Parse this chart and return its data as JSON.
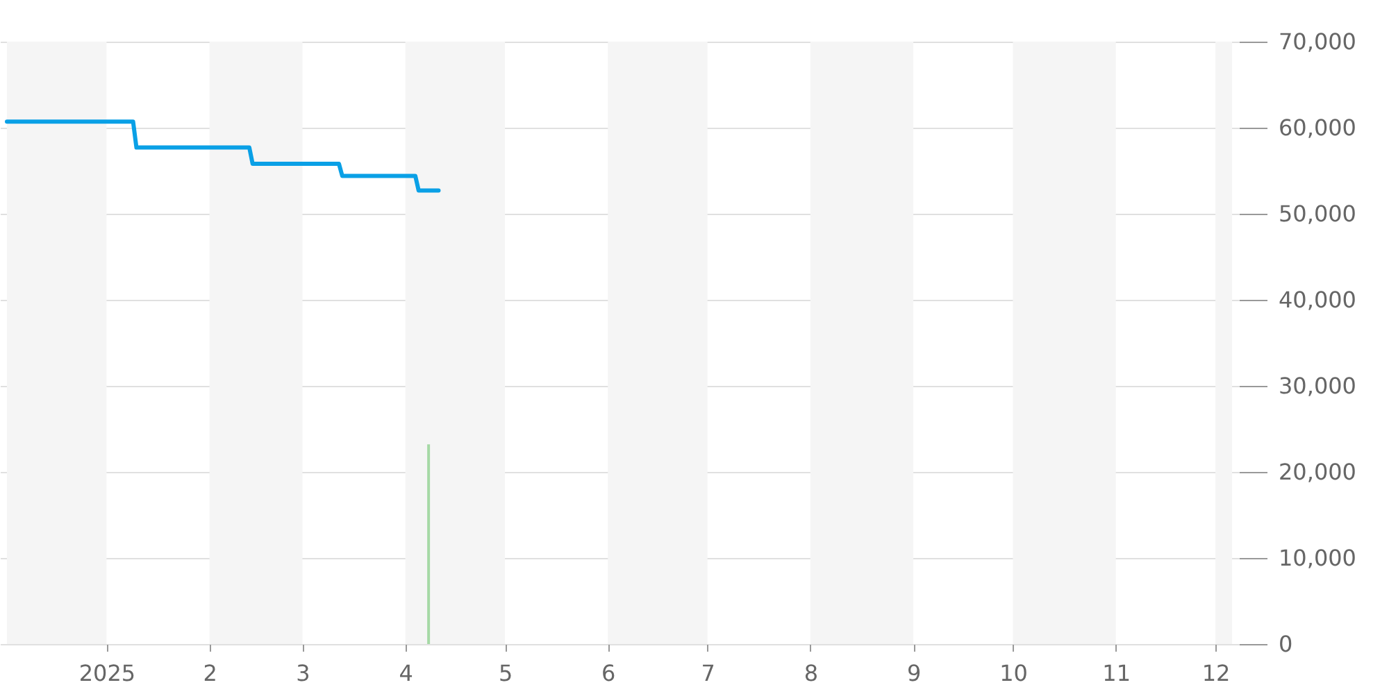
{
  "chart_data": {
    "type": "line",
    "xlim": [
      "2024-12-02",
      "2025-12-06"
    ],
    "ylim": [
      0,
      70000
    ],
    "xticks": [
      {
        "value": "2025-01-01",
        "label": "2025"
      },
      {
        "value": "2025-02-01",
        "label": "2"
      },
      {
        "value": "2025-03-01",
        "label": "3"
      },
      {
        "value": "2025-04-01",
        "label": "4"
      },
      {
        "value": "2025-05-01",
        "label": "5"
      },
      {
        "value": "2025-06-01",
        "label": "6"
      },
      {
        "value": "2025-07-01",
        "label": "7"
      },
      {
        "value": "2025-08-01",
        "label": "8"
      },
      {
        "value": "2025-09-01",
        "label": "9"
      },
      {
        "value": "2025-10-01",
        "label": "10"
      },
      {
        "value": "2025-11-01",
        "label": "11"
      },
      {
        "value": "2025-12-01",
        "label": "12"
      }
    ],
    "yticks": [
      0,
      {
        "value": 10000,
        "label": "10,000"
      },
      {
        "value": 20000,
        "label": "20,000"
      },
      {
        "value": 30000,
        "label": "30,000"
      },
      {
        "value": 40000,
        "label": "40,000"
      },
      {
        "value": 50000,
        "label": "50,000"
      },
      {
        "value": 60000,
        "label": "60,000"
      },
      {
        "value": 70000,
        "label": "70,000"
      }
    ],
    "grid": "y",
    "bands": [
      {
        "axis": "x",
        "from": "2024-12-02",
        "to": "2025-01-01",
        "color": "#f5f5f5"
      },
      {
        "axis": "x",
        "from": "2025-02-01",
        "to": "2025-03-01",
        "color": "#f5f5f5"
      },
      {
        "axis": "x",
        "from": "2025-04-01",
        "to": "2025-05-01",
        "color": "#f5f5f5"
      },
      {
        "axis": "x",
        "from": "2025-06-01",
        "to": "2025-07-01",
        "color": "#f5f5f5"
      },
      {
        "axis": "x",
        "from": "2025-08-01",
        "to": "2025-09-01",
        "color": "#f5f5f5"
      },
      {
        "axis": "x",
        "from": "2025-10-01",
        "to": "2025-11-01",
        "color": "#f5f5f5"
      },
      {
        "axis": "x",
        "from": "2025-12-01",
        "to": "2025-12-06",
        "color": "#f5f5f5"
      }
    ],
    "series": [
      {
        "type": "bar",
        "color": "#a6d9a6",
        "x": [
          "2025-04-08"
        ],
        "values": [
          23200
        ]
      },
      {
        "color": "#0aa0e6",
        "line_style": "solid",
        "marker": "none",
        "x": [
          "2024-12-02",
          "2025-01-09",
          "2025-01-10",
          "2025-02-13",
          "2025-02-14",
          "2025-03-12",
          "2025-03-13",
          "2025-04-04",
          "2025-04-05",
          "2025-04-11"
        ],
        "values": [
          60700,
          60700,
          57700,
          57700,
          55800,
          55800,
          54400,
          54400,
          52700,
          52700
        ]
      }
    ]
  }
}
